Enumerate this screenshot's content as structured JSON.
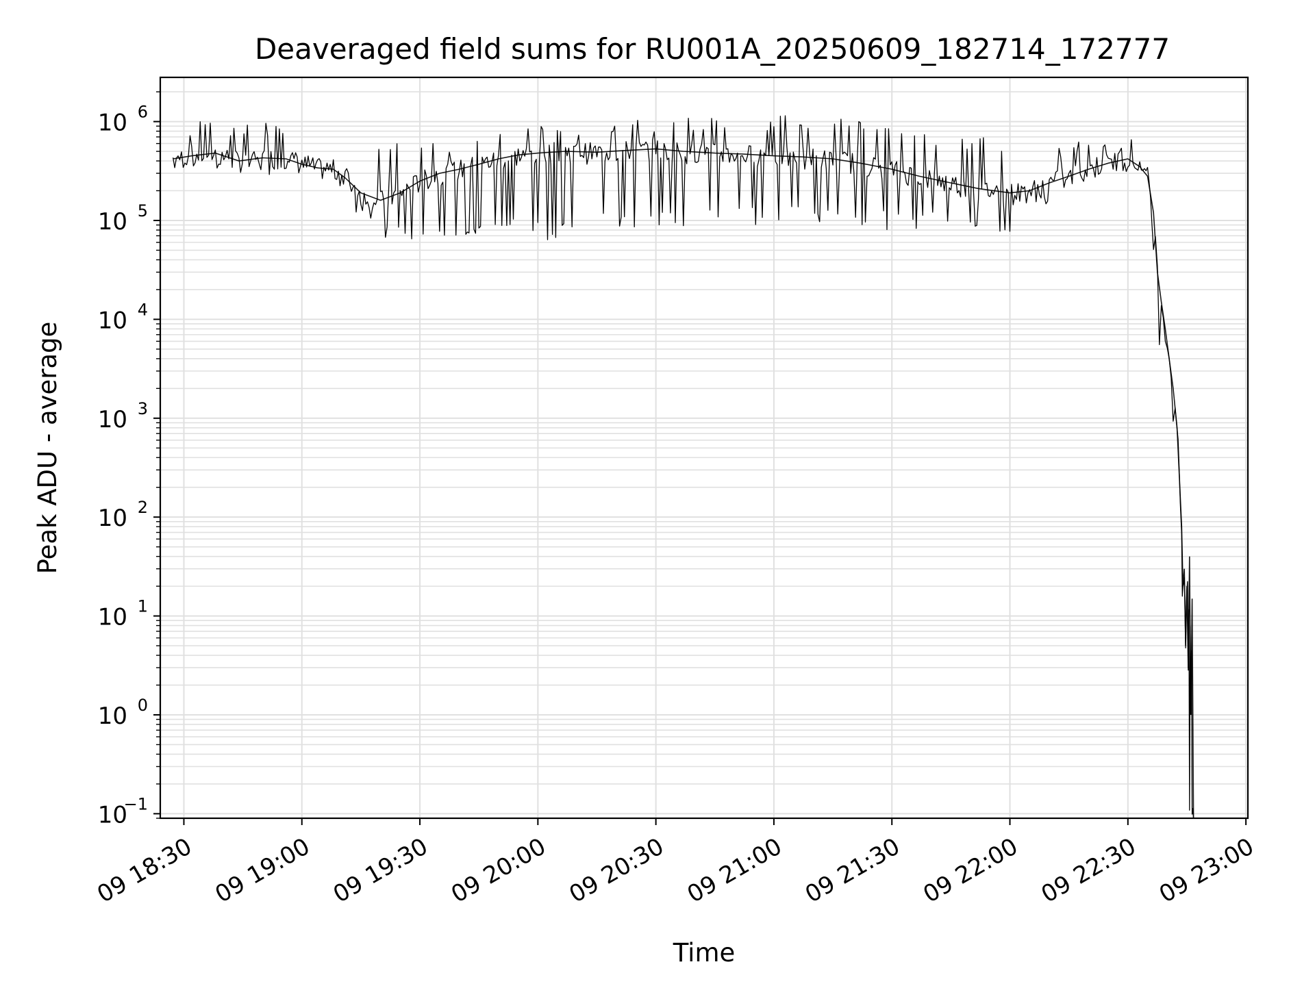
{
  "chart_data": {
    "type": "line",
    "title": "Deaveraged field sums for RU001A_20250609_182714_172777",
    "xlabel": "Time",
    "ylabel": "Peak ADU - average",
    "yscale": "log",
    "ylim": [
      0.09,
      2800000
    ],
    "xlim": [
      "2025-06-09T18:24:00",
      "2025-06-09T23:00:30"
    ],
    "grid": true,
    "grid_color": "#e0e0e0",
    "line_color": "#000000",
    "x_ticks": [
      {
        "t": "2025-06-09T18:30:00",
        "label": "09 18:30"
      },
      {
        "t": "2025-06-09T19:00:00",
        "label": "09 19:00"
      },
      {
        "t": "2025-06-09T19:30:00",
        "label": "09 19:30"
      },
      {
        "t": "2025-06-09T20:00:00",
        "label": "09 20:00"
      },
      {
        "t": "2025-06-09T20:30:00",
        "label": "09 20:30"
      },
      {
        "t": "2025-06-09T21:00:00",
        "label": "09 21:00"
      },
      {
        "t": "2025-06-09T21:30:00",
        "label": "09 21:30"
      },
      {
        "t": "2025-06-09T22:00:00",
        "label": "09 22:00"
      },
      {
        "t": "2025-06-09T22:30:00",
        "label": "09 22:30"
      },
      {
        "t": "2025-06-09T23:00:00",
        "label": "09 23:00"
      }
    ],
    "y_ticks": [
      {
        "value": 0.1,
        "base": "10",
        "exp": "−1"
      },
      {
        "value": 1,
        "base": "10",
        "exp": "0"
      },
      {
        "value": 10,
        "base": "10",
        "exp": "1"
      },
      {
        "value": 100,
        "base": "10",
        "exp": "2"
      },
      {
        "value": 1000,
        "base": "10",
        "exp": "3"
      },
      {
        "value": 10000,
        "base": "10",
        "exp": "4"
      },
      {
        "value": 100000,
        "base": "10",
        "exp": "5"
      },
      {
        "value": 1000000,
        "base": "10",
        "exp": "6"
      }
    ],
    "series": [
      {
        "x": [
          "2025-06-09T18:27:14",
          "2025-06-09T18:32:00",
          "2025-06-09T18:38:00",
          "2025-06-09T18:44:00",
          "2025-06-09T18:50:00",
          "2025-06-09T18:56:00",
          "2025-06-09T19:00:00",
          "2025-06-09T19:04:00",
          "2025-06-09T19:08:00",
          "2025-06-09T19:11:00",
          "2025-06-09T19:15:00",
          "2025-06-09T19:20:00",
          "2025-06-09T19:25:00",
          "2025-06-09T19:30:00",
          "2025-06-09T19:35:00",
          "2025-06-09T19:40:00",
          "2025-06-09T19:45:00",
          "2025-06-09T19:50:00",
          "2025-06-09T19:55:00",
          "2025-06-09T20:00:00",
          "2025-06-09T20:07:00",
          "2025-06-09T20:15:00",
          "2025-06-09T20:22:00",
          "2025-06-09T20:30:00",
          "2025-06-09T20:37:00",
          "2025-06-09T20:45:00",
          "2025-06-09T20:52:00",
          "2025-06-09T21:00:00",
          "2025-06-09T21:07:00",
          "2025-06-09T21:15:00",
          "2025-06-09T21:22:00",
          "2025-06-09T21:30:00",
          "2025-06-09T21:37:00",
          "2025-06-09T21:45:00",
          "2025-06-09T21:52:00",
          "2025-06-09T22:00:00",
          "2025-06-09T22:05:00",
          "2025-06-09T22:10:00",
          "2025-06-09T22:15:00",
          "2025-06-09T22:20:00",
          "2025-06-09T22:25:00",
          "2025-06-09T22:30:00",
          "2025-06-09T22:33:00",
          "2025-06-09T22:35:00",
          "2025-06-09T22:36:30",
          "2025-06-09T22:37:30",
          "2025-06-09T22:38:30",
          "2025-06-09T22:39:30",
          "2025-06-09T22:40:30",
          "2025-06-09T22:41:30",
          "2025-06-09T22:42:30",
          "2025-06-09T22:43:00",
          "2025-06-09T22:43:40",
          "2025-06-09T22:44:00",
          "2025-06-09T22:44:20",
          "2025-06-09T22:44:40",
          "2025-06-09T22:45:00",
          "2025-06-09T22:45:20",
          "2025-06-09T22:45:40",
          "2025-06-09T22:46:00",
          "2025-06-09T22:46:20",
          "2025-06-09T22:46:40"
        ],
        "y": [
          420000,
          450000,
          480000,
          400000,
          430000,
          420000,
          370000,
          340000,
          330000,
          270000,
          190000,
          160000,
          190000,
          250000,
          300000,
          330000,
          370000,
          420000,
          460000,
          480000,
          500000,
          490000,
          510000,
          530000,
          500000,
          480000,
          470000,
          450000,
          440000,
          420000,
          380000,
          330000,
          280000,
          240000,
          210000,
          190000,
          200000,
          240000,
          280000,
          330000,
          380000,
          420000,
          350000,
          280000,
          120000,
          30000,
          15000,
          8000,
          4000,
          2000,
          800,
          300,
          80,
          20,
          30,
          5,
          20,
          3,
          40,
          1,
          15,
          0.09
        ],
        "y_min_band": [
          300000,
          280000,
          300000,
          280000,
          300000,
          260000,
          300000,
          280000,
          250000,
          180000,
          90000,
          60000,
          60000,
          60000,
          60000,
          60000,
          70000,
          70000,
          70000,
          60000,
          70000,
          80000,
          80000,
          80000,
          80000,
          90000,
          90000,
          90000,
          90000,
          80000,
          80000,
          80000,
          80000,
          80000,
          80000,
          70000,
          90000,
          140000,
          200000,
          260000,
          320000,
          340000,
          280000,
          200000,
          50000,
          10000,
          3000,
          3000,
          2000,
          900,
          300,
          100,
          30,
          5,
          3,
          0.09,
          0.09,
          0.09,
          0.09,
          0.09,
          0.09,
          0.09
        ],
        "y_max_band": [
          1100000,
          1000000,
          1000000,
          900000,
          1000000,
          1100000,
          400000,
          380000,
          380000,
          350000,
          500000,
          600000,
          700000,
          700000,
          700000,
          700000,
          800000,
          800000,
          900000,
          900000,
          950000,
          1000000,
          1100000,
          1100000,
          1100000,
          1100000,
          1100000,
          1150000,
          1150000,
          1150000,
          1000000,
          900000,
          800000,
          700000,
          700000,
          700000,
          800000,
          600000,
          600000,
          700000,
          750000,
          700000,
          600000,
          300000,
          150000,
          50000,
          20000,
          10000,
          5000,
          3000,
          1000,
          400,
          100,
          40,
          40,
          30,
          25,
          20,
          15,
          5,
          3,
          1
        ]
      }
    ]
  }
}
